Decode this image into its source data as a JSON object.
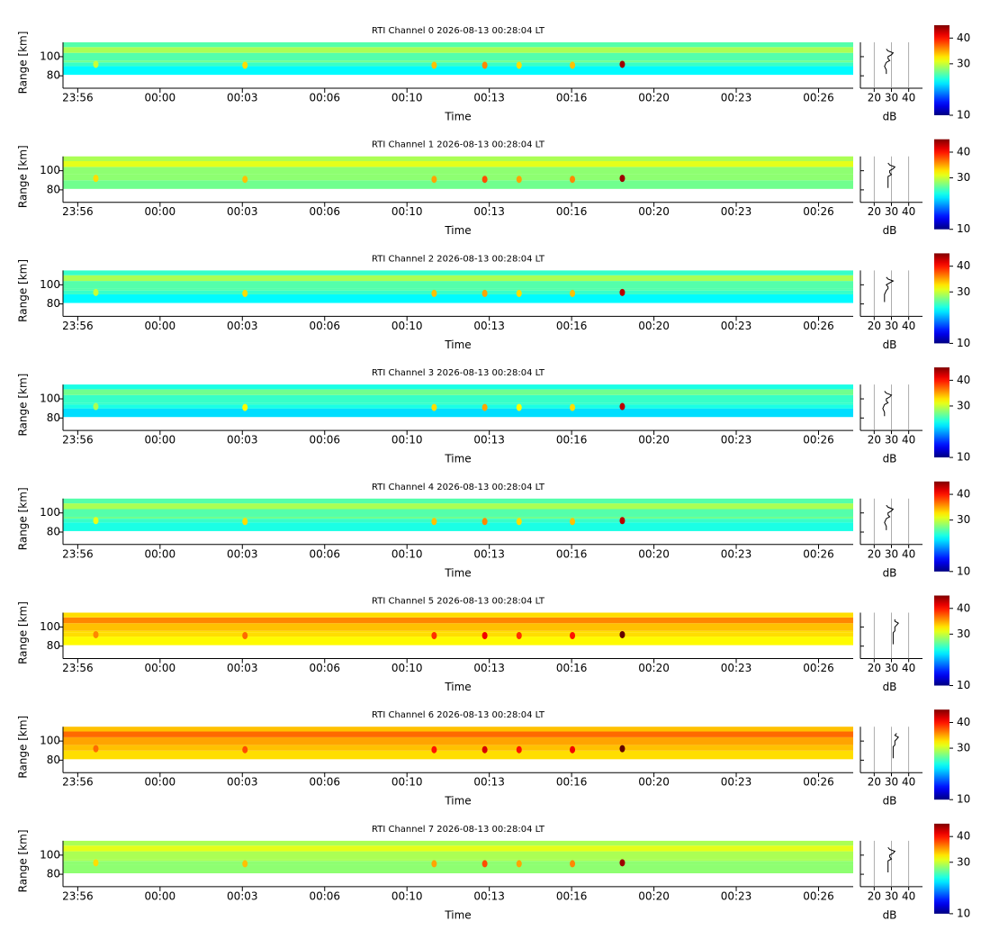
{
  "chart_data": [
    {
      "type": "rti",
      "title": "RTI Channel 0 2026-08-13 00:28:04 LT",
      "xlabel": "Time",
      "ylabel": "Range [km]",
      "xlim": [
        -3.93,
        28.07
      ],
      "xticks": [
        {
          "value": -3.333,
          "label": "23:56"
        },
        {
          "value": 0,
          "label": "00:00"
        },
        {
          "value": 3.333,
          "label": "00:03"
        },
        {
          "value": 6.667,
          "label": "00:06"
        },
        {
          "value": 10,
          "label": "00:10"
        },
        {
          "value": 13.333,
          "label": "00:13"
        },
        {
          "value": 16.667,
          "label": "00:16"
        },
        {
          "value": 20,
          "label": "00:20"
        },
        {
          "value": 23.333,
          "label": "00:23"
        },
        {
          "value": 26.667,
          "label": "00:26"
        }
      ],
      "ylim": [
        67,
        115
      ],
      "yticks": [
        80,
        100
      ],
      "colormap": "jet",
      "clim": [
        10,
        45
      ],
      "cticks": [
        10,
        30,
        40
      ],
      "rows": {
        "edges": [
          81,
          90,
          94,
          96,
          104,
          110,
          115
        ],
        "values": [
          23,
          25,
          27,
          26,
          29,
          26
        ]
      },
      "echoes": {
        "time": [
          -2.6,
          3.44,
          11.1,
          13.15,
          14.54,
          16.7,
          18.72
        ],
        "range": [
          92,
          91,
          91,
          91,
          91,
          91,
          92
        ],
        "db": [
          30,
          33,
          34,
          36,
          33,
          34,
          44
        ]
      },
      "profile": {
        "xlabel": "dB",
        "xlim": [
          12,
          48
        ],
        "xticks": [
          20,
          30,
          40
        ],
        "grid": true,
        "range": [
          82,
          86,
          90,
          94,
          96,
          98,
          100,
          102,
          104,
          106,
          108
        ],
        "db": [
          27,
          27,
          26,
          27,
          29,
          28,
          28,
          30,
          31,
          28,
          27
        ]
      }
    },
    {
      "type": "rti",
      "title": "RTI Channel 1 2026-08-13 00:28:04 LT",
      "xlabel": "Time",
      "ylabel": "Range [km]",
      "xlim": [
        -3.93,
        28.07
      ],
      "xticks": [
        {
          "value": -3.333,
          "label": "23:56"
        },
        {
          "value": 0,
          "label": "00:00"
        },
        {
          "value": 3.333,
          "label": "00:03"
        },
        {
          "value": 6.667,
          "label": "00:06"
        },
        {
          "value": 10,
          "label": "00:10"
        },
        {
          "value": 13.333,
          "label": "00:13"
        },
        {
          "value": 16.667,
          "label": "00:16"
        },
        {
          "value": 20,
          "label": "00:20"
        },
        {
          "value": 23.333,
          "label": "00:23"
        },
        {
          "value": 26.667,
          "label": "00:26"
        }
      ],
      "ylim": [
        67,
        115
      ],
      "yticks": [
        80,
        100
      ],
      "colormap": "jet",
      "clim": [
        10,
        45
      ],
      "cticks": [
        10,
        30,
        40
      ],
      "rows": {
        "edges": [
          81,
          90,
          94,
          96,
          104,
          110,
          115
        ],
        "values": [
          27,
          28,
          28,
          28,
          31,
          29
        ]
      },
      "echoes": {
        "time": [
          -2.6,
          3.44,
          11.1,
          13.15,
          14.54,
          16.7,
          18.72
        ],
        "range": [
          92,
          91,
          91,
          91,
          91,
          91,
          92
        ],
        "db": [
          33,
          34,
          35,
          38,
          35,
          36,
          44
        ]
      },
      "profile": {
        "xlabel": "dB",
        "xlim": [
          12,
          48
        ],
        "xticks": [
          20,
          30,
          40
        ],
        "grid": true,
        "range": [
          82,
          86,
          90,
          94,
          96,
          98,
          100,
          102,
          104,
          106,
          108
        ],
        "db": [
          28,
          28,
          28,
          28,
          30,
          29,
          29,
          31,
          32,
          29,
          28
        ]
      }
    },
    {
      "type": "rti",
      "title": "RTI Channel 2 2026-08-13 00:28:04 LT",
      "xlabel": "Time",
      "ylabel": "Range [km]",
      "xlim": [
        -3.93,
        28.07
      ],
      "xticks": [
        {
          "value": -3.333,
          "label": "23:56"
        },
        {
          "value": 0,
          "label": "00:00"
        },
        {
          "value": 3.333,
          "label": "00:03"
        },
        {
          "value": 6.667,
          "label": "00:06"
        },
        {
          "value": 10,
          "label": "00:10"
        },
        {
          "value": 13.333,
          "label": "00:13"
        },
        {
          "value": 16.667,
          "label": "00:16"
        },
        {
          "value": 20,
          "label": "00:20"
        },
        {
          "value": 23.333,
          "label": "00:23"
        },
        {
          "value": 26.667,
          "label": "00:26"
        }
      ],
      "ylim": [
        67,
        115
      ],
      "yticks": [
        80,
        100
      ],
      "colormap": "jet",
      "clim": [
        10,
        45
      ],
      "cticks": [
        10,
        30,
        40
      ],
      "rows": {
        "edges": [
          81,
          90,
          94,
          96,
          104,
          110,
          115
        ],
        "values": [
          23,
          25,
          26,
          26,
          29,
          25
        ]
      },
      "echoes": {
        "time": [
          -2.6,
          3.44,
          11.1,
          13.15,
          14.54,
          16.7,
          18.72
        ],
        "range": [
          92,
          91,
          91,
          91,
          91,
          91,
          92
        ],
        "db": [
          30,
          33,
          34,
          35,
          33,
          34,
          43
        ]
      },
      "profile": {
        "xlabel": "dB",
        "xlim": [
          12,
          48
        ],
        "xticks": [
          20,
          30,
          40
        ],
        "grid": true,
        "range": [
          82,
          86,
          90,
          94,
          96,
          98,
          100,
          102,
          104,
          106,
          108
        ],
        "db": [
          26,
          26,
          26,
          27,
          28,
          28,
          27,
          29,
          31,
          28,
          27
        ]
      }
    },
    {
      "type": "rti",
      "title": "RTI Channel 3 2026-08-13 00:28:04 LT",
      "xlabel": "Time",
      "ylabel": "Range [km]",
      "xlim": [
        -3.93,
        28.07
      ],
      "xticks": [
        {
          "value": -3.333,
          "label": "23:56"
        },
        {
          "value": 0,
          "label": "00:00"
        },
        {
          "value": 3.333,
          "label": "00:03"
        },
        {
          "value": 6.667,
          "label": "00:06"
        },
        {
          "value": 10,
          "label": "00:10"
        },
        {
          "value": 13.333,
          "label": "00:13"
        },
        {
          "value": 16.667,
          "label": "00:16"
        },
        {
          "value": 20,
          "label": "00:20"
        },
        {
          "value": 23.333,
          "label": "00:23"
        },
        {
          "value": 26.667,
          "label": "00:26"
        }
      ],
      "ylim": [
        67,
        115
      ],
      "yticks": [
        80,
        100
      ],
      "colormap": "jet",
      "clim": [
        10,
        45
      ],
      "cticks": [
        10,
        30,
        40
      ],
      "rows": {
        "edges": [
          81,
          90,
          94,
          96,
          104,
          110,
          115
        ],
        "values": [
          22,
          24,
          25,
          25,
          27,
          24
        ]
      },
      "echoes": {
        "time": [
          -2.6,
          3.44,
          11.1,
          13.15,
          14.54,
          16.7,
          18.72
        ],
        "range": [
          92,
          91,
          91,
          91,
          91,
          91,
          92
        ],
        "db": [
          29,
          32,
          33,
          35,
          32,
          33,
          43
        ]
      },
      "profile": {
        "xlabel": "dB",
        "xlim": [
          12,
          48
        ],
        "xticks": [
          20,
          30,
          40
        ],
        "grid": true,
        "range": [
          82,
          86,
          90,
          94,
          96,
          98,
          100,
          102,
          104,
          106,
          108
        ],
        "db": [
          26,
          26,
          25,
          26,
          28,
          27,
          27,
          29,
          30,
          27,
          26
        ]
      }
    },
    {
      "type": "rti",
      "title": "RTI Channel 4 2026-08-13 00:28:04 LT",
      "xlabel": "Time",
      "ylabel": "Range [km]",
      "xlim": [
        -3.93,
        28.07
      ],
      "xticks": [
        {
          "value": -3.333,
          "label": "23:56"
        },
        {
          "value": 0,
          "label": "00:00"
        },
        {
          "value": 3.333,
          "label": "00:03"
        },
        {
          "value": 6.667,
          "label": "00:06"
        },
        {
          "value": 10,
          "label": "00:10"
        },
        {
          "value": 13.333,
          "label": "00:13"
        },
        {
          "value": 16.667,
          "label": "00:16"
        },
        {
          "value": 20,
          "label": "00:20"
        },
        {
          "value": 23.333,
          "label": "00:23"
        },
        {
          "value": 26.667,
          "label": "00:26"
        }
      ],
      "ylim": [
        67,
        115
      ],
      "yticks": [
        80,
        100
      ],
      "colormap": "jet",
      "clim": [
        10,
        45
      ],
      "cticks": [
        10,
        30,
        40
      ],
      "rows": {
        "edges": [
          81,
          90,
          94,
          96,
          104,
          110,
          115
        ],
        "values": [
          24,
          25,
          27,
          26,
          29,
          26
        ]
      },
      "echoes": {
        "time": [
          -2.6,
          3.44,
          11.1,
          13.15,
          14.54,
          16.7,
          18.72
        ],
        "range": [
          92,
          91,
          91,
          91,
          91,
          91,
          92
        ],
        "db": [
          31,
          33,
          34,
          36,
          33,
          34,
          43
        ]
      },
      "profile": {
        "xlabel": "dB",
        "xlim": [
          12,
          48
        ],
        "xticks": [
          20,
          30,
          40
        ],
        "grid": true,
        "range": [
          82,
          86,
          90,
          94,
          96,
          98,
          100,
          102,
          104,
          106,
          108
        ],
        "db": [
          27,
          27,
          26,
          27,
          29,
          28,
          28,
          30,
          31,
          28,
          27
        ]
      }
    },
    {
      "type": "rti",
      "title": "RTI Channel 5 2026-08-13 00:28:04 LT",
      "xlabel": "Time",
      "ylabel": "Range [km]",
      "xlim": [
        -3.93,
        28.07
      ],
      "xticks": [
        {
          "value": -3.333,
          "label": "23:56"
        },
        {
          "value": 0,
          "label": "00:00"
        },
        {
          "value": 3.333,
          "label": "00:03"
        },
        {
          "value": 6.667,
          "label": "00:06"
        },
        {
          "value": 10,
          "label": "00:10"
        },
        {
          "value": 13.333,
          "label": "00:13"
        },
        {
          "value": 16.667,
          "label": "00:16"
        },
        {
          "value": 20,
          "label": "00:20"
        },
        {
          "value": 23.333,
          "label": "00:23"
        },
        {
          "value": 26.667,
          "label": "00:26"
        }
      ],
      "ylim": [
        67,
        115
      ],
      "yticks": [
        80,
        100
      ],
      "colormap": "jet",
      "clim": [
        10,
        45
      ],
      "cticks": [
        10,
        30,
        40
      ],
      "rows": {
        "edges": [
          81,
          90,
          94,
          96,
          104,
          110,
          115
        ],
        "values": [
          32,
          33,
          33,
          34,
          36,
          33
        ]
      },
      "echoes": {
        "time": [
          -2.6,
          3.44,
          11.1,
          13.15,
          14.54,
          16.7,
          18.72
        ],
        "range": [
          92,
          91,
          91,
          91,
          91,
          91,
          92
        ],
        "db": [
          36,
          37,
          39,
          41,
          39,
          40,
          46
        ]
      },
      "profile": {
        "xlabel": "dB",
        "xlim": [
          12,
          48
        ],
        "xticks": [
          20,
          30,
          40
        ],
        "grid": true,
        "range": [
          82,
          86,
          90,
          94,
          96,
          98,
          100,
          102,
          104,
          106,
          108
        ],
        "db": [
          31,
          31,
          31,
          31,
          32,
          32,
          32,
          33,
          34,
          32,
          32
        ]
      }
    },
    {
      "type": "rti",
      "title": "RTI Channel 6 2026-08-13 00:28:04 LT",
      "xlabel": "Time",
      "ylabel": "Range [km]",
      "xlim": [
        -3.93,
        28.07
      ],
      "xticks": [
        {
          "value": -3.333,
          "label": "23:56"
        },
        {
          "value": 0,
          "label": "00:00"
        },
        {
          "value": 3.333,
          "label": "00:03"
        },
        {
          "value": 6.667,
          "label": "00:06"
        },
        {
          "value": 10,
          "label": "00:10"
        },
        {
          "value": 13.333,
          "label": "00:13"
        },
        {
          "value": 16.667,
          "label": "00:16"
        },
        {
          "value": 20,
          "label": "00:20"
        },
        {
          "value": 23.333,
          "label": "00:23"
        },
        {
          "value": 26.667,
          "label": "00:26"
        }
      ],
      "ylim": [
        67,
        115
      ],
      "yticks": [
        80,
        100
      ],
      "colormap": "jet",
      "clim": [
        10,
        45
      ],
      "cticks": [
        10,
        30,
        40
      ],
      "rows": {
        "edges": [
          81,
          90,
          94,
          96,
          104,
          110,
          115
        ],
        "values": [
          33,
          34,
          34,
          35,
          37,
          34
        ]
      },
      "echoes": {
        "time": [
          -2.6,
          3.44,
          11.1,
          13.15,
          14.54,
          16.7,
          18.72
        ],
        "range": [
          92,
          91,
          91,
          91,
          91,
          91,
          92
        ],
        "db": [
          37,
          38,
          40,
          42,
          40,
          41,
          46
        ]
      },
      "profile": {
        "xlabel": "dB",
        "xlim": [
          12,
          48
        ],
        "xticks": [
          20,
          30,
          40
        ],
        "grid": true,
        "range": [
          82,
          86,
          90,
          94,
          96,
          98,
          100,
          102,
          104,
          106,
          108
        ],
        "db": [
          31,
          31,
          31,
          31,
          32,
          32,
          32,
          33,
          34,
          32,
          33
        ]
      }
    },
    {
      "type": "rti",
      "title": "RTI Channel 7 2026-08-13 00:28:04 LT",
      "xlabel": "Time",
      "ylabel": "Range [km]",
      "xlim": [
        -3.93,
        28.07
      ],
      "xticks": [
        {
          "value": -3.333,
          "label": "23:56"
        },
        {
          "value": 0,
          "label": "00:00"
        },
        {
          "value": 3.333,
          "label": "00:03"
        },
        {
          "value": 6.667,
          "label": "00:06"
        },
        {
          "value": 10,
          "label": "00:10"
        },
        {
          "value": 13.333,
          "label": "00:13"
        },
        {
          "value": 16.667,
          "label": "00:16"
        },
        {
          "value": 20,
          "label": "00:20"
        },
        {
          "value": 23.333,
          "label": "00:23"
        },
        {
          "value": 26.667,
          "label": "00:26"
        }
      ],
      "ylim": [
        67,
        115
      ],
      "yticks": [
        80,
        100
      ],
      "colormap": "jet",
      "clim": [
        10,
        45
      ],
      "cticks": [
        10,
        30,
        40
      ],
      "rows": {
        "edges": [
          81,
          90,
          94,
          96,
          104,
          110,
          115
        ],
        "values": [
          28,
          28,
          29,
          29,
          31,
          29
        ]
      },
      "echoes": {
        "time": [
          -2.6,
          3.44,
          11.1,
          13.15,
          14.54,
          16.7,
          18.72
        ],
        "range": [
          92,
          91,
          91,
          91,
          91,
          91,
          92
        ],
        "db": [
          33,
          34,
          35,
          38,
          35,
          36,
          44
        ]
      },
      "profile": {
        "xlabel": "dB",
        "xlim": [
          12,
          48
        ],
        "xticks": [
          20,
          30,
          40
        ],
        "grid": true,
        "range": [
          82,
          86,
          90,
          94,
          96,
          98,
          100,
          102,
          104,
          106,
          108
        ],
        "db": [
          28,
          28,
          28,
          28,
          30,
          29,
          29,
          31,
          32,
          29,
          28
        ]
      }
    }
  ]
}
